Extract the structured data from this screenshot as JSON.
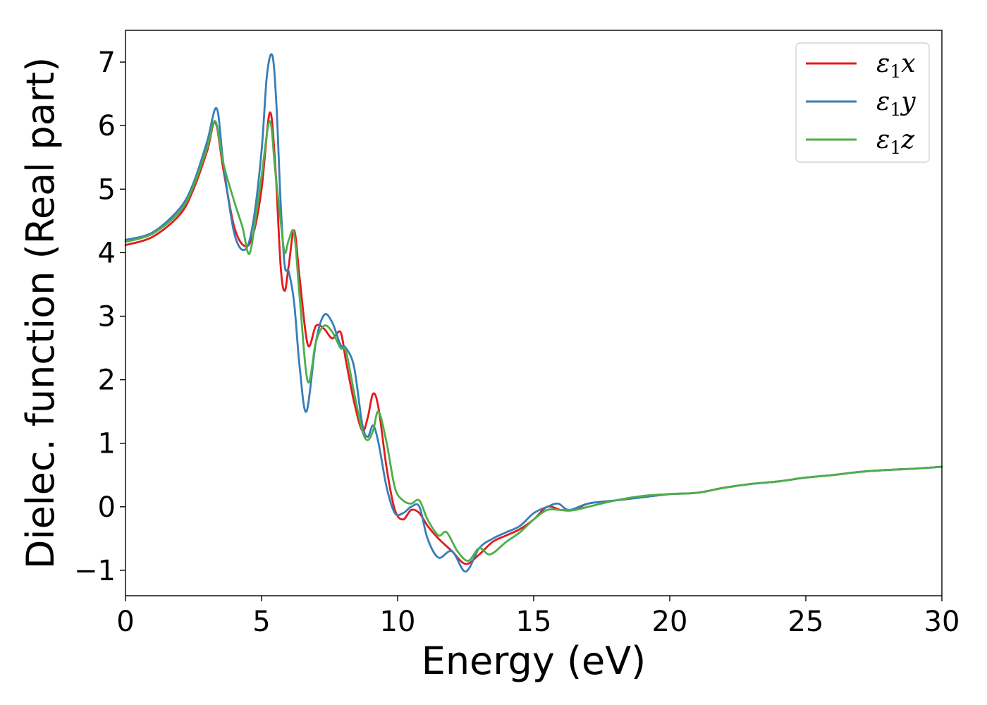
{
  "chart_data": {
    "type": "line",
    "xlabel": "Energy (eV)",
    "ylabel": "Dielec. function (Real part)",
    "xlim": [
      0,
      30
    ],
    "ylim": [
      -1.4,
      7.5
    ],
    "xticks": [
      0,
      5,
      10,
      15,
      20,
      25,
      30
    ],
    "xtick_labels": [
      "0",
      "5",
      "10",
      "15",
      "20",
      "25",
      "30"
    ],
    "yticks": [
      -1,
      0,
      1,
      2,
      3,
      4,
      5,
      6,
      7
    ],
    "ytick_labels": [
      "−1",
      "0",
      "1",
      "2",
      "3",
      "4",
      "5",
      "6",
      "7"
    ],
    "grid": false,
    "legend_position": "top-right",
    "series": [
      {
        "name": "ε₁x",
        "legend_base": "ε",
        "legend_sub": "1",
        "legend_suffix": "x",
        "color": "#e41a1c",
        "x": [
          0,
          1,
          2,
          2.5,
          3,
          3.3,
          3.6,
          4,
          4.4,
          4.7,
          5,
          5.3,
          5.5,
          5.7,
          5.85,
          6.0,
          6.2,
          6.4,
          6.7,
          7.0,
          7.3,
          7.6,
          7.9,
          8.1,
          8.4,
          8.7,
          8.9,
          9.1,
          9.3,
          9.6,
          9.9,
          10.2,
          10.5,
          10.8,
          11.1,
          11.5,
          12.0,
          12.5,
          13.0,
          13.5,
          14,
          14.5,
          15,
          15.5,
          16,
          16.5,
          17,
          18,
          19,
          20,
          21,
          22,
          23,
          24,
          25,
          26,
          27,
          28,
          29,
          30
        ],
        "y": [
          4.12,
          4.25,
          4.6,
          5.0,
          5.6,
          6.05,
          5.3,
          4.4,
          4.1,
          4.3,
          5.0,
          6.2,
          5.4,
          3.8,
          3.4,
          3.8,
          4.35,
          3.6,
          2.55,
          2.85,
          2.8,
          2.65,
          2.75,
          2.3,
          1.65,
          1.2,
          1.4,
          1.78,
          1.55,
          0.6,
          -0.05,
          -0.2,
          -0.05,
          -0.1,
          -0.3,
          -0.5,
          -0.7,
          -0.9,
          -0.75,
          -0.55,
          -0.45,
          -0.35,
          -0.2,
          0.0,
          -0.05,
          -0.05,
          0.05,
          0.1,
          0.15,
          0.2,
          0.22,
          0.3,
          0.36,
          0.4,
          0.46,
          0.5,
          0.55,
          0.58,
          0.6,
          0.63
        ]
      },
      {
        "name": "ε₁y",
        "legend_base": "ε",
        "legend_sub": "1",
        "legend_suffix": "y",
        "color": "#377eb8",
        "x": [
          0,
          1,
          2,
          2.5,
          3,
          3.35,
          3.6,
          4,
          4.4,
          4.7,
          5,
          5.2,
          5.4,
          5.55,
          5.7,
          5.85,
          6.0,
          6.2,
          6.4,
          6.65,
          7.0,
          7.3,
          7.6,
          7.9,
          8.1,
          8.4,
          8.7,
          8.9,
          9.1,
          9.3,
          9.6,
          9.9,
          10.2,
          10.5,
          10.8,
          11.1,
          11.5,
          12.0,
          12.5,
          13.0,
          13.5,
          14,
          14.5,
          15,
          15.5,
          15.9,
          16.3,
          17,
          18,
          19,
          20,
          21,
          22,
          23,
          24,
          25,
          26,
          27,
          28,
          29,
          30
        ],
        "y": [
          4.2,
          4.32,
          4.7,
          5.1,
          5.75,
          6.27,
          5.4,
          4.3,
          4.05,
          4.5,
          5.6,
          6.8,
          7.1,
          6.3,
          4.8,
          3.8,
          3.7,
          3.2,
          2.2,
          1.5,
          2.6,
          3.02,
          2.9,
          2.55,
          2.5,
          2.2,
          1.3,
          1.1,
          1.28,
          1.0,
          0.3,
          -0.1,
          -0.1,
          0.0,
          0.0,
          -0.5,
          -0.8,
          -0.7,
          -1.02,
          -0.65,
          -0.5,
          -0.4,
          -0.3,
          -0.1,
          0.0,
          0.05,
          -0.05,
          0.05,
          0.1,
          0.15,
          0.2,
          0.22,
          0.3,
          0.36,
          0.4,
          0.46,
          0.5,
          0.55,
          0.58,
          0.6,
          0.63
        ]
      },
      {
        "name": "ε₁z",
        "legend_base": "ε",
        "legend_sub": "1",
        "legend_suffix": "z",
        "color": "#4daf4a",
        "x": [
          0,
          1,
          2,
          2.5,
          3,
          3.3,
          3.6,
          4,
          4.3,
          4.55,
          4.8,
          5.0,
          5.3,
          5.5,
          5.7,
          5.85,
          6.0,
          6.2,
          6.4,
          6.7,
          7.0,
          7.3,
          7.6,
          7.9,
          8.1,
          8.4,
          8.7,
          8.9,
          9.1,
          9.3,
          9.6,
          9.9,
          10.2,
          10.5,
          10.8,
          11.1,
          11.5,
          11.8,
          12.2,
          12.6,
          13.0,
          13.4,
          14,
          14.5,
          15,
          15.5,
          16,
          16.5,
          17,
          18,
          19,
          20,
          21,
          22,
          23,
          24,
          25,
          26,
          27,
          28,
          29,
          30
        ],
        "y": [
          4.17,
          4.3,
          4.65,
          5.05,
          5.65,
          6.07,
          5.4,
          4.8,
          4.4,
          3.98,
          4.6,
          5.2,
          6.07,
          5.3,
          4.5,
          4.0,
          4.2,
          4.3,
          3.3,
          1.97,
          2.6,
          2.85,
          2.75,
          2.5,
          2.45,
          1.8,
          1.2,
          1.05,
          1.2,
          1.5,
          1.0,
          0.3,
          0.1,
          0.05,
          0.1,
          -0.2,
          -0.45,
          -0.4,
          -0.7,
          -0.85,
          -0.65,
          -0.75,
          -0.55,
          -0.4,
          -0.2,
          -0.05,
          -0.05,
          -0.05,
          0.0,
          0.1,
          0.17,
          0.2,
          0.22,
          0.3,
          0.36,
          0.4,
          0.46,
          0.5,
          0.55,
          0.58,
          0.6,
          0.63
        ]
      }
    ]
  }
}
